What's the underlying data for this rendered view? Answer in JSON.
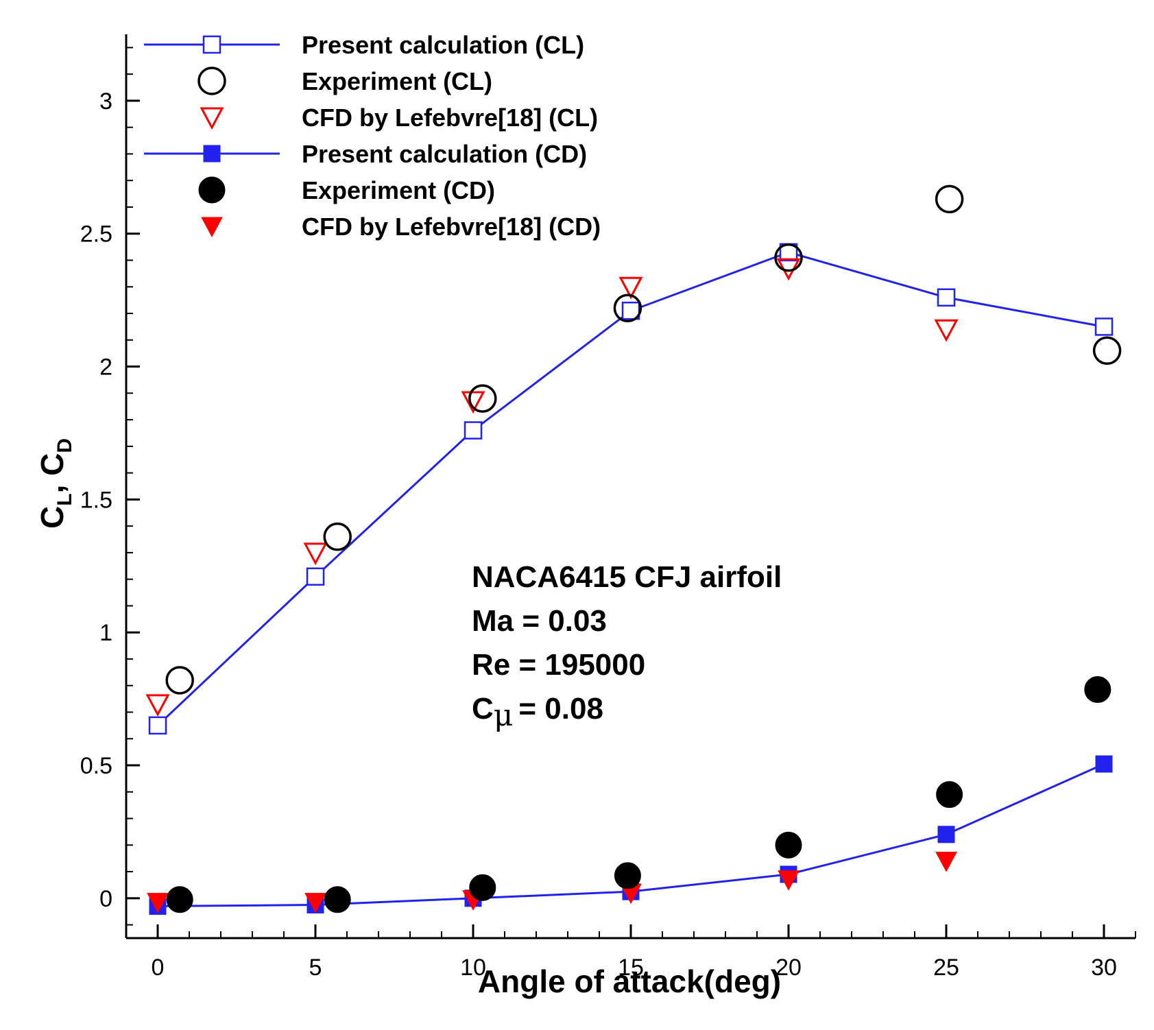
{
  "chart_data": {
    "type": "line",
    "xlabel": "Angle of attack(deg)",
    "ylabel": {
      "main": "C",
      "sub1": "L",
      "sep": ", ",
      "sub2": "D"
    },
    "xlim": [
      -1,
      31
    ],
    "ylim": [
      -0.15,
      3.25
    ],
    "xticks": [
      0,
      5,
      10,
      15,
      20,
      25,
      30
    ],
    "yticks": [
      0,
      0.5,
      1,
      1.5,
      2,
      2.5,
      3
    ],
    "xtick_labels": [
      "0",
      "5",
      "10",
      "15",
      "20",
      "25",
      "30"
    ],
    "ytick_labels": [
      "0",
      "0.5",
      "1",
      "1.5",
      "2",
      "2.5",
      "3"
    ],
    "grid": false,
    "legend_position": "top-left",
    "colors": {
      "blue": "#2222ee",
      "red": "#ff0000",
      "black": "#000000"
    },
    "series": [
      {
        "name": "Present calculation (CL)",
        "marker": "square-open",
        "line": true,
        "color": "#2222ee",
        "x": [
          0,
          5,
          10,
          15,
          20,
          25,
          30
        ],
        "y": [
          0.65,
          1.21,
          1.76,
          2.21,
          2.43,
          2.26,
          2.15
        ]
      },
      {
        "name": "Experiment (CL)",
        "marker": "circle-open",
        "line": false,
        "color": "#000000",
        "x": [
          0.7,
          5.7,
          10.3,
          14.9,
          20,
          25.1,
          30.1
        ],
        "y": [
          0.82,
          1.36,
          1.88,
          2.22,
          2.41,
          2.63,
          2.06
        ]
      },
      {
        "name": "CFD by Lefebvre[18]  (CL)",
        "marker": "triangle-down-open",
        "line": false,
        "color": "#ff0000",
        "x": [
          0,
          5,
          10,
          15,
          20,
          25
        ],
        "y": [
          0.73,
          1.3,
          1.87,
          2.3,
          2.37,
          2.14
        ]
      },
      {
        "name": "Present calculation (CD)",
        "marker": "square-filled",
        "line": true,
        "color": "#2222ee",
        "x": [
          0,
          5,
          10,
          15,
          20,
          25,
          30
        ],
        "y": [
          -0.03,
          -0.025,
          0.0,
          0.025,
          0.09,
          0.24,
          0.505
        ]
      },
      {
        "name": "Experiment (CD)",
        "marker": "circle-filled",
        "line": false,
        "color": "#000000",
        "x": [
          0.7,
          5.7,
          10.3,
          14.9,
          20,
          25.1,
          29.8
        ],
        "y": [
          -0.005,
          -0.005,
          0.04,
          0.085,
          0.2,
          0.39,
          0.785
        ]
      },
      {
        "name": "CFD by Lefebvre[18]  (CD)",
        "marker": "triangle-down-filled",
        "line": false,
        "color": "#ff0000",
        "x": [
          0,
          5,
          10,
          15,
          20,
          25
        ],
        "y": [
          -0.015,
          -0.015,
          -0.005,
          0.02,
          0.07,
          0.14
        ]
      }
    ],
    "annotation": {
      "lines": [
        "NACA6415 CFJ airfoil",
        "Ma = 0.03",
        "Re = 195000",
        "= 0.08"
      ],
      "cmu_symbol": "C",
      "mu_symbol": "μ"
    }
  }
}
